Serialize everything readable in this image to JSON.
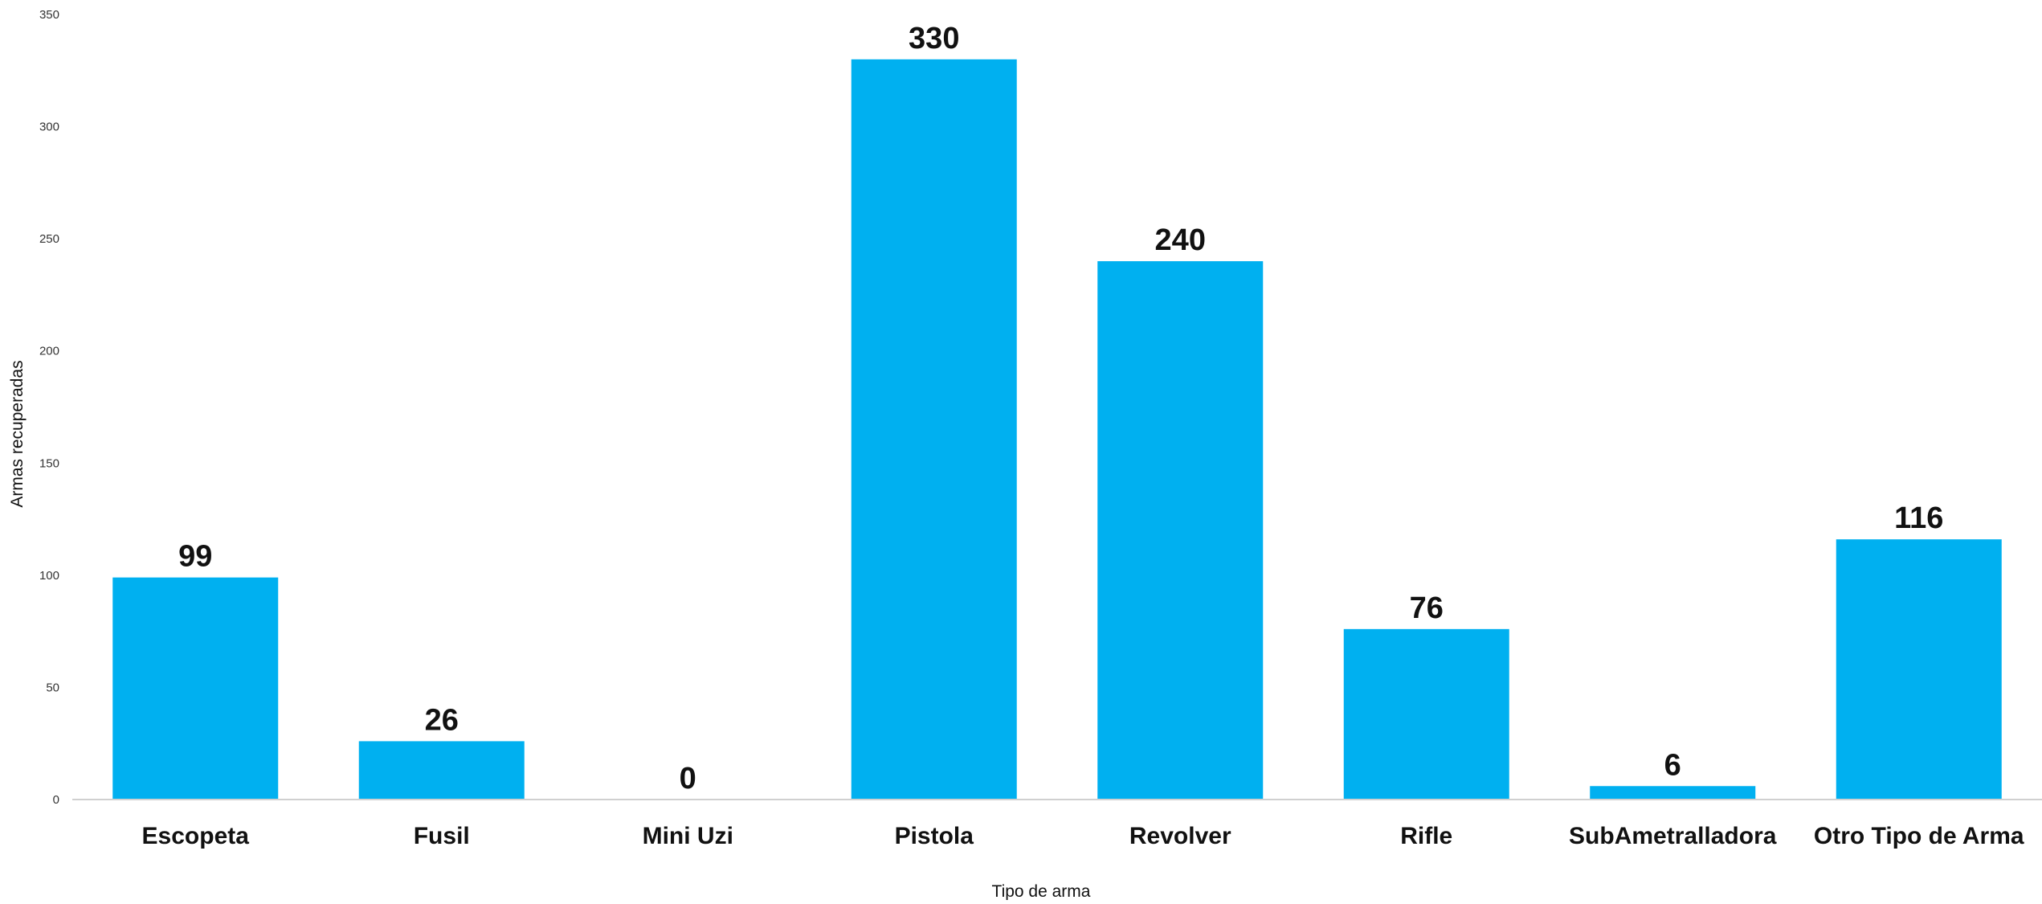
{
  "chart_data": {
    "type": "bar",
    "categories": [
      "Escopeta",
      "Fusil",
      "Mini Uzi",
      "Pistola",
      "Revolver",
      "Rifle",
      "SubAmetralladora",
      "Otro Tipo de Arma"
    ],
    "values": [
      99,
      26,
      0,
      330,
      240,
      76,
      6,
      116
    ],
    "data_labels": [
      "99",
      "26",
      "0",
      "330",
      "240",
      "76",
      "6",
      "116"
    ],
    "xlabel": "Tipo de arma",
    "ylabel": "Armas recuperadas",
    "ylim": [
      0,
      350
    ],
    "yticks": [
      0,
      50,
      100,
      150,
      200,
      250,
      300,
      350
    ],
    "ytick_labels": [
      "0",
      "50",
      "100",
      "150",
      "200",
      "250",
      "300",
      "350"
    ],
    "grid": false,
    "legend": "none",
    "bar_color": "#00B0F0"
  }
}
